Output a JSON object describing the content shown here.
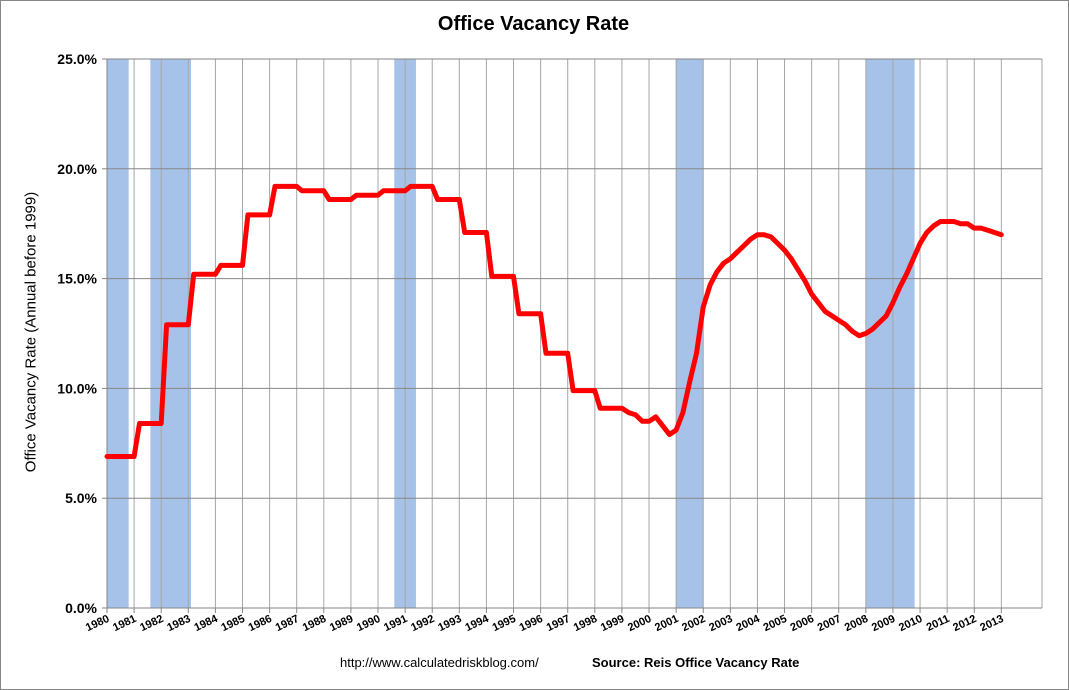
{
  "chart_data": {
    "type": "line",
    "title": "Office Vacancy Rate",
    "ylabel": "Office Vacancy Rate (Annual before 1999)",
    "xlabel": "",
    "ylim": [
      0,
      25
    ],
    "xlim": [
      1980,
      2014.5
    ],
    "y_ticks": [
      "0.0%",
      "5.0%",
      "10.0%",
      "15.0%",
      "20.0%",
      "25.0%"
    ],
    "y_tick_values": [
      0,
      5,
      10,
      15,
      20,
      25
    ],
    "x_ticks": [
      "1980",
      "1981",
      "1982",
      "1983",
      "1984",
      "1985",
      "1986",
      "1987",
      "1988",
      "1989",
      "1990",
      "1991",
      "1992",
      "1993",
      "1994",
      "1995",
      "1996",
      "1997",
      "1998",
      "1999",
      "2000",
      "2001",
      "2002",
      "2003",
      "2004",
      "2005",
      "2006",
      "2007",
      "2008",
      "2009",
      "2010",
      "2011",
      "2012",
      "2013"
    ],
    "grid": {
      "horizontal": true,
      "vertical": true
    },
    "line_color": "#ff0000",
    "recession_color": "#a7c2e8",
    "recessions": [
      [
        1980.0,
        1980.8
      ],
      [
        1981.6,
        1983.1
      ],
      [
        1990.6,
        1991.4
      ],
      [
        2001.0,
        2002.0
      ],
      [
        2008.0,
        2009.8
      ]
    ],
    "series": [
      {
        "values": [
          [
            1980.0,
            6.9
          ],
          [
            1981.0,
            6.9
          ],
          [
            1981.2,
            8.4
          ],
          [
            1982.0,
            8.4
          ],
          [
            1982.2,
            12.9
          ],
          [
            1983.0,
            12.9
          ],
          [
            1983.2,
            15.2
          ],
          [
            1984.0,
            15.2
          ],
          [
            1984.2,
            15.6
          ],
          [
            1985.0,
            15.6
          ],
          [
            1985.2,
            17.9
          ],
          [
            1986.0,
            17.9
          ],
          [
            1986.2,
            19.2
          ],
          [
            1987.0,
            19.2
          ],
          [
            1987.2,
            19.0
          ],
          [
            1988.0,
            19.0
          ],
          [
            1988.2,
            18.6
          ],
          [
            1989.0,
            18.6
          ],
          [
            1989.2,
            18.8
          ],
          [
            1990.0,
            18.8
          ],
          [
            1990.2,
            19.0
          ],
          [
            1991.0,
            19.0
          ],
          [
            1991.2,
            19.2
          ],
          [
            1992.0,
            19.2
          ],
          [
            1992.2,
            18.6
          ],
          [
            1993.0,
            18.6
          ],
          [
            1993.2,
            17.1
          ],
          [
            1994.0,
            17.1
          ],
          [
            1994.2,
            15.1
          ],
          [
            1995.0,
            15.1
          ],
          [
            1995.2,
            13.4
          ],
          [
            1996.0,
            13.4
          ],
          [
            1996.2,
            11.6
          ],
          [
            1997.0,
            11.6
          ],
          [
            1997.2,
            9.9
          ],
          [
            1998.0,
            9.9
          ],
          [
            1998.2,
            9.1
          ],
          [
            1999.0,
            9.1
          ],
          [
            1999.25,
            8.9
          ],
          [
            1999.5,
            8.8
          ],
          [
            1999.75,
            8.5
          ],
          [
            2000.0,
            8.5
          ],
          [
            2000.25,
            8.7
          ],
          [
            2000.5,
            8.3
          ],
          [
            2000.75,
            7.9
          ],
          [
            2001.0,
            8.1
          ],
          [
            2001.25,
            8.9
          ],
          [
            2001.5,
            10.3
          ],
          [
            2001.75,
            11.6
          ],
          [
            2002.0,
            13.7
          ],
          [
            2002.25,
            14.7
          ],
          [
            2002.5,
            15.3
          ],
          [
            2002.75,
            15.7
          ],
          [
            2003.0,
            15.9
          ],
          [
            2003.25,
            16.2
          ],
          [
            2003.5,
            16.5
          ],
          [
            2003.75,
            16.8
          ],
          [
            2004.0,
            17.0
          ],
          [
            2004.25,
            17.0
          ],
          [
            2004.5,
            16.9
          ],
          [
            2004.75,
            16.6
          ],
          [
            2005.0,
            16.3
          ],
          [
            2005.25,
            15.9
          ],
          [
            2005.5,
            15.4
          ],
          [
            2005.75,
            14.9
          ],
          [
            2006.0,
            14.3
          ],
          [
            2006.25,
            13.9
          ],
          [
            2006.5,
            13.5
          ],
          [
            2006.75,
            13.3
          ],
          [
            2007.0,
            13.1
          ],
          [
            2007.25,
            12.9
          ],
          [
            2007.5,
            12.6
          ],
          [
            2007.75,
            12.4
          ],
          [
            2008.0,
            12.5
          ],
          [
            2008.25,
            12.7
          ],
          [
            2008.5,
            13.0
          ],
          [
            2008.75,
            13.3
          ],
          [
            2009.0,
            13.9
          ],
          [
            2009.25,
            14.6
          ],
          [
            2009.5,
            15.2
          ],
          [
            2009.75,
            15.9
          ],
          [
            2010.0,
            16.6
          ],
          [
            2010.25,
            17.1
          ],
          [
            2010.5,
            17.4
          ],
          [
            2010.75,
            17.6
          ],
          [
            2011.0,
            17.6
          ],
          [
            2011.25,
            17.6
          ],
          [
            2011.5,
            17.5
          ],
          [
            2011.75,
            17.5
          ],
          [
            2012.0,
            17.3
          ],
          [
            2012.25,
            17.3
          ],
          [
            2012.5,
            17.2
          ],
          [
            2012.75,
            17.1
          ],
          [
            2013.0,
            17.0
          ]
        ]
      }
    ]
  },
  "footer": {
    "url": "http://www.calculatedriskblog.com/",
    "source": "Source: Reis Office Vacancy Rate"
  }
}
